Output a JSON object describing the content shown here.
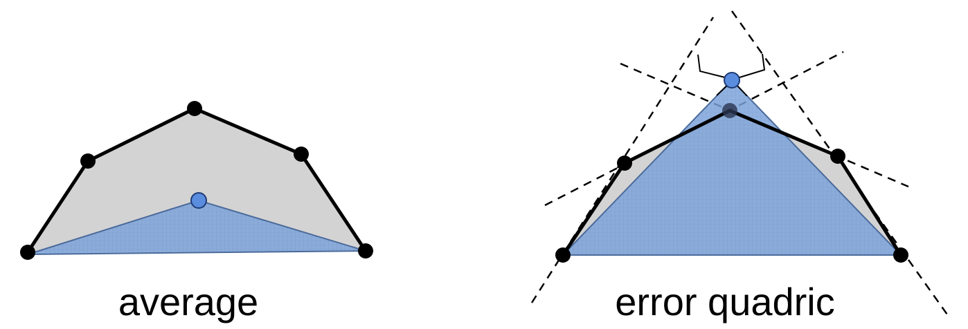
{
  "left_panel": {
    "caption": "average"
  },
  "right_panel": {
    "caption": "error quadric"
  },
  "colors": {
    "polygon_fill": "#d3d3d3",
    "edge_stroke": "#000000",
    "collapsed_fill": "#6f97cf",
    "grid_line": "#4f78bf",
    "new_vertex_fill": "#5b8dde",
    "new_vertex_stroke": "#1d3a74",
    "dashed_line": "#000000",
    "background": "#ffffff"
  }
}
